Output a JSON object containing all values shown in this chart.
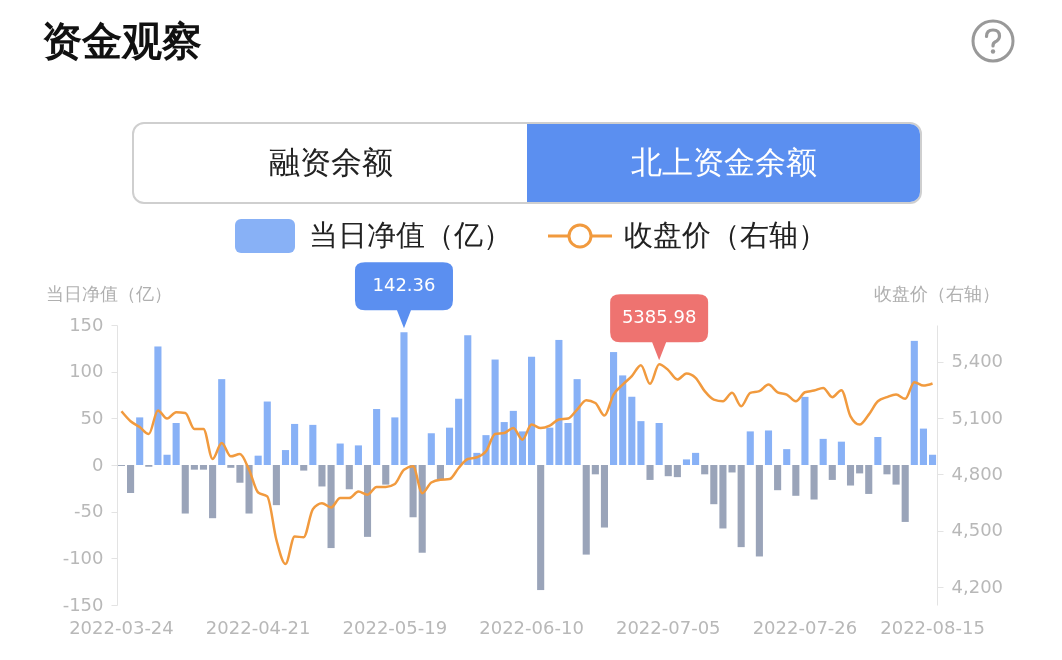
{
  "chart_data": {
    "type": "bar",
    "title": "资金观察",
    "ylabel": "当日净值（亿）",
    "y2label": "收盘价（右轴）",
    "annotations": [
      "融资余额",
      "北上资金余额"
    ],
    "categories": [
      "2022-03-24",
      null,
      null,
      null,
      null,
      null,
      null,
      null,
      null,
      null,
      null,
      null,
      null,
      null,
      null,
      "2022-04-21",
      null,
      null,
      null,
      null,
      null,
      null,
      null,
      null,
      null,
      null,
      null,
      null,
      null,
      null,
      "2022-05-19",
      null,
      null,
      null,
      null,
      null,
      null,
      null,
      null,
      null,
      null,
      null,
      null,
      null,
      null,
      "2022-06-10",
      null,
      null,
      null,
      null,
      null,
      null,
      null,
      null,
      null,
      null,
      null,
      null,
      null,
      null,
      "2022-07-05",
      null,
      null,
      null,
      null,
      null,
      null,
      null,
      null,
      null,
      null,
      null,
      null,
      null,
      null,
      "2022-07-26",
      null,
      null,
      null,
      null,
      null,
      null,
      null,
      null,
      null,
      null,
      null,
      null,
      null,
      "2022-08-15"
    ],
    "series": [
      {
        "name": "当日净值（亿）",
        "color": "#88b1f6",
        "values": [
          -1,
          -30,
          51,
          -2,
          127,
          11,
          45,
          -52,
          -5,
          -5,
          -57,
          92,
          -3,
          -19,
          -52,
          10,
          68,
          -43,
          16,
          44,
          -6,
          43,
          -23,
          -89,
          23,
          -26,
          21,
          -77,
          60,
          -21,
          51,
          142.36,
          -56,
          -94,
          34,
          -16,
          40,
          71,
          139,
          13,
          32,
          113,
          46,
          58,
          36,
          116,
          -134,
          40,
          134,
          45,
          92,
          -96,
          -10,
          -67,
          121,
          96,
          73,
          47,
          -16,
          45,
          -12,
          -13,
          6,
          13,
          -10,
          -42,
          -68,
          -8,
          -88,
          36,
          -98,
          37,
          -27,
          17,
          -33,
          73,
          -37,
          28,
          -16,
          25,
          -22,
          -9,
          -31,
          30,
          -10,
          -21,
          -61,
          133,
          39,
          11
        ],
        "value_labels": [
          null,
          null,
          null,
          null,
          null,
          null,
          null,
          null,
          null,
          null,
          null,
          null,
          null,
          null,
          null,
          null,
          null,
          null,
          null,
          null,
          null,
          null,
          null,
          null,
          null,
          null,
          null,
          null,
          null,
          null,
          null,
          "142.36",
          null,
          null,
          null,
          null,
          null,
          null,
          null,
          null,
          null,
          null,
          null,
          null,
          null,
          null,
          null,
          null,
          null,
          null,
          null,
          null,
          null,
          null,
          null,
          null,
          null,
          null,
          null,
          null,
          null,
          null,
          null,
          null,
          null,
          null,
          null,
          null,
          null,
          null,
          null,
          null,
          null,
          null,
          null,
          null,
          null,
          null,
          null,
          null,
          null,
          null,
          null,
          null,
          null,
          null,
          null,
          null,
          null,
          null
        ],
        "colors": [
          "#9aa4b9",
          "#9aa4b9",
          "#88b1f6",
          "#9aa4b9",
          "#88b1f6",
          "#88b1f6",
          "#88b1f6",
          "#9aa4b9",
          "#9aa4b9",
          "#9aa4b9",
          "#9aa4b9",
          "#88b1f6",
          "#9aa4b9",
          "#9aa4b9",
          "#9aa4b9",
          "#88b1f6",
          "#88b1f6",
          "#9aa4b9",
          "#88b1f6",
          "#88b1f6",
          "#9aa4b9",
          "#88b1f6",
          "#9aa4b9",
          "#9aa4b9",
          "#88b1f6",
          "#9aa4b9",
          "#88b1f6",
          "#9aa4b9",
          "#88b1f6",
          "#9aa4b9",
          "#88b1f6",
          "#88b1f6",
          "#9aa4b9",
          "#9aa4b9",
          "#88b1f6",
          "#9aa4b9",
          "#88b1f6",
          "#88b1f6",
          "#88b1f6",
          "#88b1f6",
          "#88b1f6",
          "#88b1f6",
          "#88b1f6",
          "#88b1f6",
          "#88b1f6",
          "#88b1f6",
          "#9aa4b9",
          "#88b1f6",
          "#88b1f6",
          "#88b1f6",
          "#88b1f6",
          "#9aa4b9",
          "#9aa4b9",
          "#9aa4b9",
          "#88b1f6",
          "#88b1f6",
          "#88b1f6",
          "#88b1f6",
          "#9aa4b9",
          "#88b1f6",
          "#9aa4b9",
          "#9aa4b9",
          "#88b1f6",
          "#88b1f6",
          "#9aa4b9",
          "#9aa4b9",
          "#9aa4b9",
          "#9aa4b9",
          "#9aa4b9",
          "#88b1f6",
          "#9aa4b9",
          "#88b1f6",
          "#9aa4b9",
          "#88b1f6",
          "#9aa4b9",
          "#88b1f6",
          "#9aa4b9",
          "#88b1f6",
          "#9aa4b9",
          "#88b1f6",
          "#9aa4b9",
          "#9aa4b9",
          "#9aa4b9",
          "#88b1f6",
          "#9aa4b9",
          "#9aa4b9",
          "#9aa4b9",
          "#88b1f6",
          "#88b1f6",
          "#88b1f6"
        ]
      },
      {
        "name": "收盘价（右轴）",
        "type": "line",
        "axis": "y2",
        "color": "#f19a3e",
        "value_labels": [
          null,
          null,
          null,
          null,
          null,
          null,
          null,
          null,
          null,
          null,
          null,
          null,
          null,
          null,
          null,
          null,
          null,
          null,
          null,
          null,
          null,
          null,
          null,
          null,
          null,
          null,
          null,
          null,
          null,
          null,
          null,
          null,
          null,
          null,
          null,
          null,
          null,
          null,
          null,
          null,
          null,
          null,
          null,
          null,
          null,
          null,
          null,
          null,
          null,
          null,
          null,
          null,
          null,
          null,
          null,
          null,
          null,
          null,
          null,
          "5385.98",
          null,
          null,
          null,
          null,
          null,
          null,
          null,
          null,
          null,
          null,
          null,
          null,
          null,
          null,
          null,
          null,
          null,
          null,
          null,
          null,
          null,
          null,
          null,
          null,
          null,
          null,
          null,
          null,
          null,
          null
        ],
        "values": [
          5136,
          5083,
          5052,
          5015,
          5140,
          5097,
          5131,
          5127,
          5042,
          5042,
          4882,
          4967,
          4896,
          4908,
          4825,
          4704,
          4683,
          4452,
          4323,
          4469,
          4466,
          4615,
          4647,
          4624,
          4674,
          4674,
          4709,
          4692,
          4733,
          4733,
          4749,
          4825,
          4843,
          4700,
          4757,
          4772,
          4775,
          4834,
          4882,
          4891,
          4923,
          5015,
          5020,
          5047,
          4985,
          5065,
          5047,
          5060,
          5092,
          5097,
          5145,
          5195,
          5180,
          5113,
          5225,
          5278,
          5323,
          5381,
          5282,
          5385.98,
          5355,
          5305,
          5337,
          5314,
          5243,
          5198,
          5189,
          5234,
          5163,
          5234,
          5243,
          5278,
          5237,
          5225,
          5189,
          5237,
          5246,
          5260,
          5211,
          5248,
          5109,
          5065,
          5118,
          5189,
          5211,
          5225,
          5202,
          5291,
          5273,
          5284
        ]
      }
    ],
    "ylim": [
      -150,
      150
    ],
    "yticks": [
      -150,
      -100,
      -50,
      0,
      50,
      100,
      150
    ],
    "y2lim": [
      4105,
      5595
    ],
    "y2ticks": [
      {
        "value": 4200,
        "label": "4,200"
      },
      {
        "value": 4500,
        "label": "4,500"
      },
      {
        "value": 4800,
        "label": "4,800"
      },
      {
        "value": 5100,
        "label": "5,100"
      },
      {
        "value": 5400,
        "label": "5,400"
      }
    ],
    "grid": false,
    "legend": "top"
  }
}
